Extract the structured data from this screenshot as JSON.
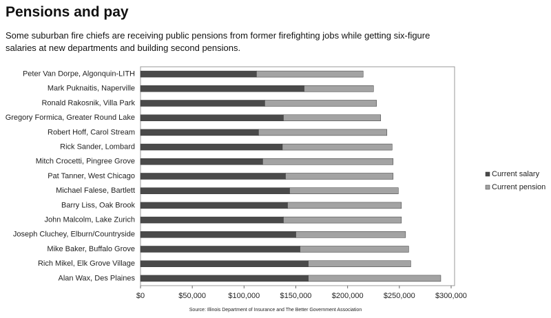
{
  "chart_data": {
    "type": "stacked-bar-horizontal",
    "title": "Pensions and pay",
    "subtitle": [
      "Some suburban fire chiefs are receiving public pensions from former firefighting jobs while getting six-figure",
      "salaries at new departments and building second pensions."
    ],
    "source": "Source: Illinois Department of Insurance and The Better Government Association",
    "categories": [
      "Peter Van Dorpe, Algonquin-LITH",
      "Mark Puknaitis, Naperville",
      "Ronald Rakosnik, Villa Park",
      "Gregory Formica, Greater Round Lake",
      "Robert Hoff, Carol Stream",
      "Rick Sander, Lombard",
      "Mitch Crocetti, Pingree Grove",
      "Pat Tanner, West Chicago",
      "Michael Falese, Bartlett",
      "Barry Liss, Oak Brook",
      "John Malcolm, Lake Zurich",
      "Joseph Cluchey, Elburn/Countryside",
      "Mike Baker, Buffalo Grove",
      "Rich Mikel, Elk Grove Village",
      "Alan Wax, Des Plaines"
    ],
    "series": [
      {
        "name": "Current salary",
        "color": "#4a4a4a",
        "values": [
          112000,
          158000,
          120000,
          138000,
          114000,
          137000,
          118000,
          140000,
          144000,
          142000,
          138000,
          150000,
          154000,
          162000,
          162000
        ]
      },
      {
        "name": "Current pension",
        "color": "#a3a3a3",
        "values": [
          103000,
          67000,
          108000,
          94000,
          124000,
          106000,
          126000,
          104000,
          105000,
          110000,
          114000,
          106000,
          105000,
          99000,
          128000
        ]
      }
    ],
    "xlim": [
      0,
      300000
    ],
    "xticks": [
      {
        "value": 0,
        "label": "$0"
      },
      {
        "value": 50000,
        "label": "$50,000"
      },
      {
        "value": 100000,
        "label": "$100,000"
      },
      {
        "value": 150000,
        "label": "$150,000"
      },
      {
        "value": 200000,
        "label": "$200,000"
      },
      {
        "value": 250000,
        "label": "$250,000"
      },
      {
        "value": 300000,
        "label": "$300,000"
      }
    ],
    "legend": "right"
  }
}
